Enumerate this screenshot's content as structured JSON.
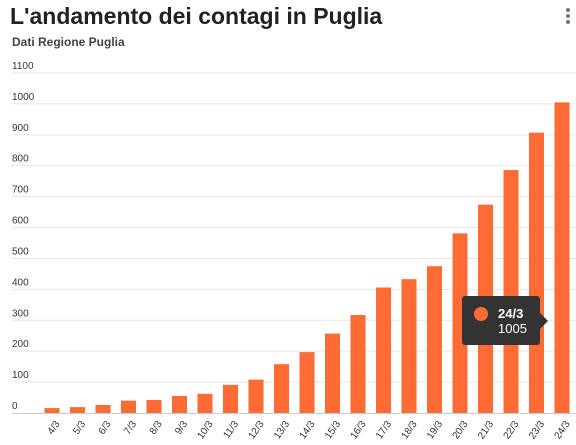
{
  "header": {
    "title": "L'andamento dei contagi in Puglia",
    "subtitle": "Dati Regione Puglia"
  },
  "icons": {
    "menu": "more-vertical-icon"
  },
  "colors": {
    "bar": "#ff6b35",
    "grid": "#e6e6e6",
    "axis_text": "#333333",
    "tooltip_bg": "#333333"
  },
  "tooltip": {
    "label": "24/3",
    "value": "1005"
  },
  "chart_data": {
    "type": "bar",
    "title": "L'andamento dei contagi in Puglia",
    "subtitle": "Dati Regione Puglia",
    "categories": [
      "4/3",
      "5/3",
      "6/3",
      "7/3",
      "8/3",
      "9/3",
      "10/3",
      "11/3",
      "12/3",
      "13/3",
      "14/3",
      "15/3",
      "16/3",
      "17/3",
      "18/3",
      "19/3",
      "20/3",
      "21/3",
      "22/3",
      "23/3",
      "24/3"
    ],
    "values": [
      16,
      19,
      26,
      40,
      42,
      55,
      62,
      91,
      108,
      158,
      197,
      257,
      317,
      406,
      433,
      475,
      581,
      674,
      786,
      907,
      1005
    ],
    "ylim": [
      0,
      1100
    ],
    "yticks": [
      0,
      100,
      200,
      300,
      400,
      500,
      600,
      700,
      800,
      900,
      1000,
      1100
    ],
    "xlabel": "",
    "ylabel": "",
    "grid": true,
    "legend": "none"
  }
}
